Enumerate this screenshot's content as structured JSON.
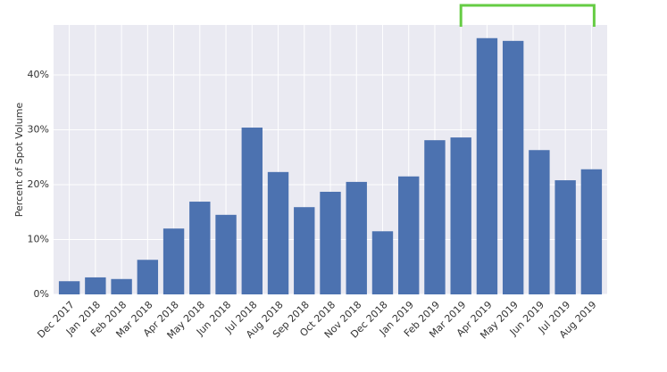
{
  "chart_data": {
    "type": "bar",
    "y_label": "Percent of Spot Volume",
    "categories": [
      "Dec 2017",
      "Jan 2018",
      "Feb 2018",
      "Mar 2018",
      "Apr 2018",
      "May 2018",
      "Jun 2018",
      "Jul 2018",
      "Aug 2018",
      "Sep 2018",
      "Oct 2018",
      "Nov 2018",
      "Dec 2018",
      "Jan 2019",
      "Feb 2019",
      "Mar 2019",
      "Apr 2019",
      "May 2019",
      "Jun 2019",
      "Jul 2019",
      "Aug 2019"
    ],
    "values": [
      2.4,
      3.1,
      2.8,
      6.3,
      12.0,
      16.9,
      14.5,
      30.4,
      22.3,
      15.9,
      18.7,
      20.5,
      11.5,
      21.5,
      28.1,
      28.6,
      46.7,
      46.2,
      26.3,
      20.8,
      22.8
    ],
    "color": "#4c72b0",
    "ylim": [
      0,
      49.1
    ],
    "yticks": [
      {
        "value": 0,
        "label": "0%"
      },
      {
        "value": 10,
        "label": "10%"
      },
      {
        "value": 20,
        "label": "20%"
      },
      {
        "value": 30,
        "label": "30%"
      },
      {
        "value": 40,
        "label": "40%"
      }
    ],
    "grid": true
  }
}
